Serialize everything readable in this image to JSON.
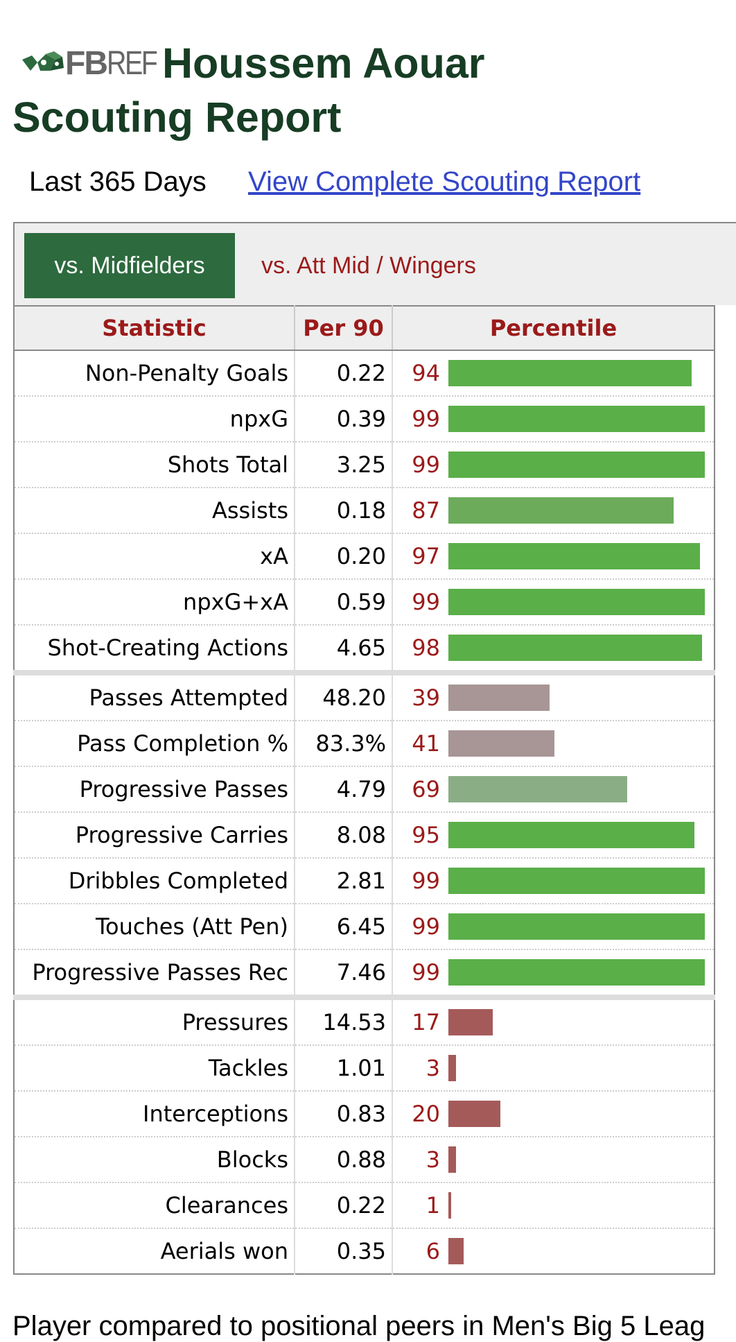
{
  "header": {
    "logo_fb": "FB",
    "logo_ref": "REF",
    "title_part1": "Houssem Aouar",
    "title_part2": "Scouting Report"
  },
  "subline": {
    "period": "Last 365 Days",
    "link": "View Complete Scouting Report"
  },
  "tabs": [
    {
      "label": "vs. Midfielders",
      "active": true
    },
    {
      "label": "vs. Att Mid / Wingers",
      "active": false
    }
  ],
  "table": {
    "headers": [
      "Statistic",
      "Per 90",
      "Percentile"
    ],
    "groups": [
      [
        {
          "stat": "Non-Penalty Goals",
          "per90": "0.22",
          "pct": 94
        },
        {
          "stat": "npxG",
          "per90": "0.39",
          "pct": 99
        },
        {
          "stat": "Shots Total",
          "per90": "3.25",
          "pct": 99
        },
        {
          "stat": "Assists",
          "per90": "0.18",
          "pct": 87
        },
        {
          "stat": "xA",
          "per90": "0.20",
          "pct": 97
        },
        {
          "stat": "npxG+xA",
          "per90": "0.59",
          "pct": 99
        },
        {
          "stat": "Shot-Creating Actions",
          "per90": "4.65",
          "pct": 98
        }
      ],
      [
        {
          "stat": "Passes Attempted",
          "per90": "48.20",
          "pct": 39
        },
        {
          "stat": "Pass Completion %",
          "per90": "83.3%",
          "pct": 41
        },
        {
          "stat": "Progressive Passes",
          "per90": "4.79",
          "pct": 69
        },
        {
          "stat": "Progressive Carries",
          "per90": "8.08",
          "pct": 95
        },
        {
          "stat": "Dribbles Completed",
          "per90": "2.81",
          "pct": 99
        },
        {
          "stat": "Touches (Att Pen)",
          "per90": "6.45",
          "pct": 99
        },
        {
          "stat": "Progressive Passes Rec",
          "per90": "7.46",
          "pct": 99
        }
      ],
      [
        {
          "stat": "Pressures",
          "per90": "14.53",
          "pct": 17
        },
        {
          "stat": "Tackles",
          "per90": "1.01",
          "pct": 3
        },
        {
          "stat": "Interceptions",
          "per90": "0.83",
          "pct": 20
        },
        {
          "stat": "Blocks",
          "per90": "0.88",
          "pct": 3
        },
        {
          "stat": "Clearances",
          "per90": "0.22",
          "pct": 1
        },
        {
          "stat": "Aerials won",
          "per90": "0.35",
          "pct": 6
        }
      ]
    ]
  },
  "footer": {
    "text": "Player compared to positional peers in Men's Big 5 Leag"
  },
  "colors": {
    "title_green": "#173d24",
    "tab_active_bg": "#2d6a3e",
    "accent_red": "#9b1a1a",
    "link_blue": "#3346c8"
  }
}
